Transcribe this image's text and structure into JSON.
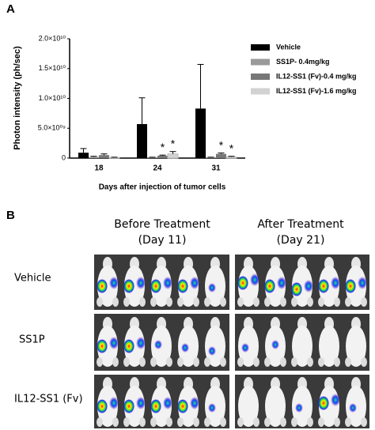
{
  "panel_a_label": "A",
  "chart_data": {
    "type": "bar",
    "y_label": "Photon intensity (ph/sec)",
    "x_label": "Days after injection of tumor cells",
    "categories": [
      "18",
      "24",
      "31"
    ],
    "series": [
      {
        "name": "Vehicle",
        "color": "#000000",
        "values": [
          900000000,
          5700000000,
          8300000000
        ],
        "errors": [
          700000000,
          4400000000,
          7400000000
        ]
      },
      {
        "name": "SS1P- 0.4mg/kg",
        "color": "#9a9a9a",
        "values": [
          200000000,
          100000000,
          100000000
        ],
        "errors": [
          100000000,
          50000000,
          50000000
        ]
      },
      {
        "name": "IL12-SS1 (Fv)-0.4 mg/kg",
        "color": "#777777",
        "values": [
          500000000,
          400000000,
          700000000
        ],
        "errors": [
          200000000,
          100000000,
          150000000
        ]
      },
      {
        "name": "IL12-SS1 (Fv)-1.6 mg/kg",
        "color": "#d2d2d2",
        "values": [
          100000000,
          700000000,
          200000000
        ],
        "errors": [
          50000000,
          400000000,
          100000000
        ]
      }
    ],
    "annotations": [
      {
        "text": "*",
        "category": "24",
        "series": "IL12-SS1 (Fv)-0.4 mg/kg"
      },
      {
        "text": "*",
        "category": "24",
        "series": "IL12-SS1 (Fv)-1.6 mg/kg"
      },
      {
        "text": "*",
        "category": "31",
        "series": "IL12-SS1 (Fv)-0.4 mg/kg"
      },
      {
        "text": "*",
        "category": "31",
        "series": "IL12-SS1 (Fv)-1.6 mg/kg"
      }
    ],
    "ylim": [
      0,
      20000000000
    ],
    "yticks": [
      0,
      {
        "value": 5000000000,
        "label": "5.0×10⁰⁹"
      },
      {
        "value": 10000000000,
        "label": "1.0×10¹⁰"
      },
      {
        "value": 15000000000,
        "label": "1.5×10¹⁰"
      },
      {
        "value": 20000000000,
        "label": "2.0×10¹⁰"
      }
    ],
    "grid": false,
    "legend": "top-right"
  },
  "panel_b": {
    "label": "B",
    "columns": [
      {
        "title": "Before Treatment",
        "subtitle": "(Day 11)"
      },
      {
        "title": "After Treatment",
        "subtitle": "(Day 21)"
      }
    ],
    "rows": [
      "Vehicle",
      "SS1P",
      "IL12-SS1 (Fv)"
    ]
  }
}
